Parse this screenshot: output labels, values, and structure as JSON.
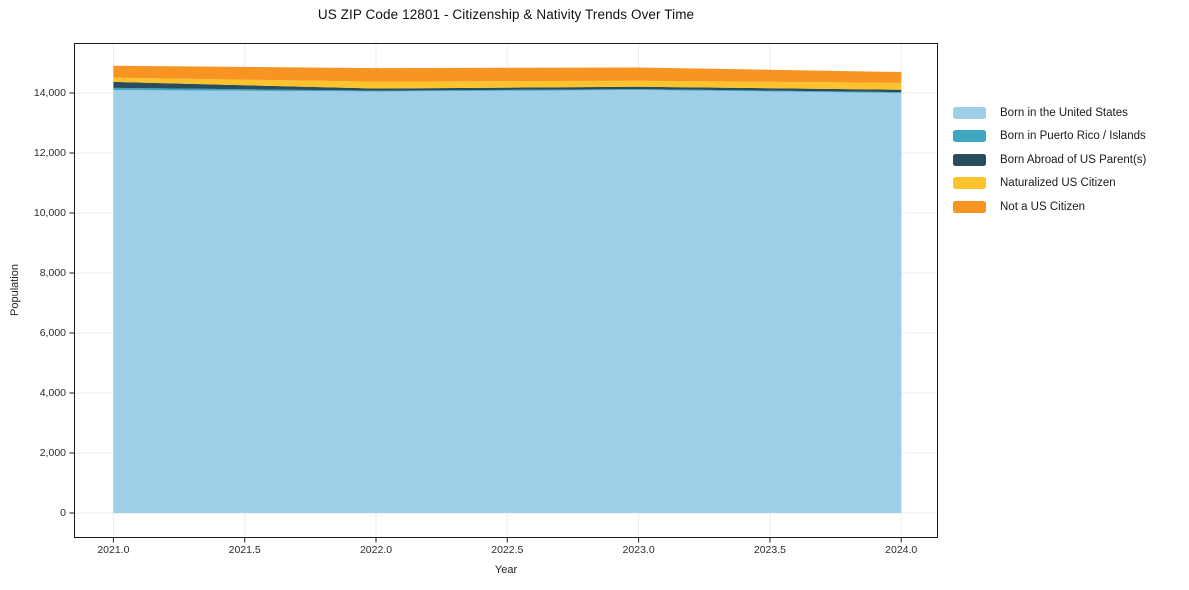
{
  "chart_data": {
    "type": "area",
    "stacked": true,
    "title": "US ZIP Code 12801 - Citizenship & Nativity Trends Over Time",
    "xlabel": "Year",
    "ylabel": "Population",
    "x": [
      2021,
      2022,
      2023,
      2024
    ],
    "series": [
      {
        "name": "Born in the United States",
        "color": "#9FCFE8",
        "values": [
          14100,
          14050,
          14100,
          14000
        ]
      },
      {
        "name": "Born in Puerto Rico / Islands",
        "color": "#3FA7C2",
        "values": [
          70,
          30,
          30,
          30
        ]
      },
      {
        "name": "Born Abroad of US Parent(s)",
        "color": "#2A4D5E",
        "values": [
          200,
          70,
          80,
          80
        ]
      },
      {
        "name": "Naturalized US Citizen",
        "color": "#FCC32D",
        "values": [
          140,
          230,
          200,
          230
        ]
      },
      {
        "name": "Not a US Citizen",
        "color": "#F79422",
        "values": [
          400,
          450,
          440,
          360
        ]
      }
    ],
    "stack_totals": [
      14910,
      14830,
      14850,
      14700
    ],
    "xticks": {
      "values": [
        2021.0,
        2021.5,
        2022.0,
        2022.5,
        2023.0,
        2023.5,
        2024.0
      ],
      "labels": [
        "2021.0",
        "2021.5",
        "2022.0",
        "2022.5",
        "2023.0",
        "2023.5",
        "2024.0"
      ]
    },
    "yticks": {
      "values": [
        0,
        2000,
        4000,
        6000,
        8000,
        10000,
        12000,
        14000
      ],
      "labels": [
        "0",
        "2,000",
        "4,000",
        "6,000",
        "8,000",
        "10,000",
        "12,000",
        "14,000"
      ]
    },
    "xlim": [
      2020.85,
      2024.14
    ],
    "ylim": [
      -833,
      15667
    ],
    "grid": true,
    "grid_color": "#ececec",
    "axis_color": "#1a1a1a",
    "legend_position": "right-outside"
  }
}
